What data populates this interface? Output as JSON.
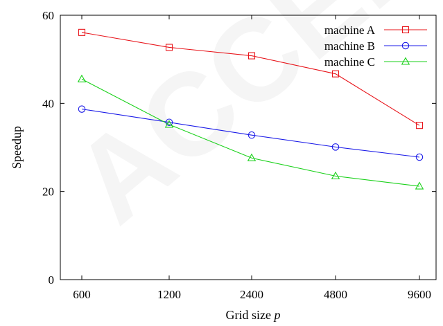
{
  "chart_data": {
    "type": "line",
    "xlabel": "Grid size",
    "xlabel_var": "p",
    "ylabel": "Speedup",
    "categories": [
      "600",
      "1200",
      "2400",
      "4800",
      "9600"
    ],
    "yticks": [
      "0",
      "20",
      "40",
      "60"
    ],
    "ylim": [
      0,
      60
    ],
    "grid": false,
    "legend_position": "top-right",
    "series": [
      {
        "name": "machine A",
        "marker": "square",
        "color": "#e8141a",
        "values": [
          56.1,
          52.7,
          50.8,
          46.7,
          35.0
        ]
      },
      {
        "name": "machine B",
        "marker": "circle",
        "color": "#1a1ae8",
        "values": [
          38.7,
          35.7,
          32.8,
          30.1,
          27.8
        ]
      },
      {
        "name": "machine C",
        "marker": "triangle",
        "color": "#1ad11a",
        "values": [
          45.5,
          35.2,
          27.6,
          23.5,
          21.2
        ]
      }
    ]
  },
  "watermark": {
    "text": "ACCEPTED"
  }
}
